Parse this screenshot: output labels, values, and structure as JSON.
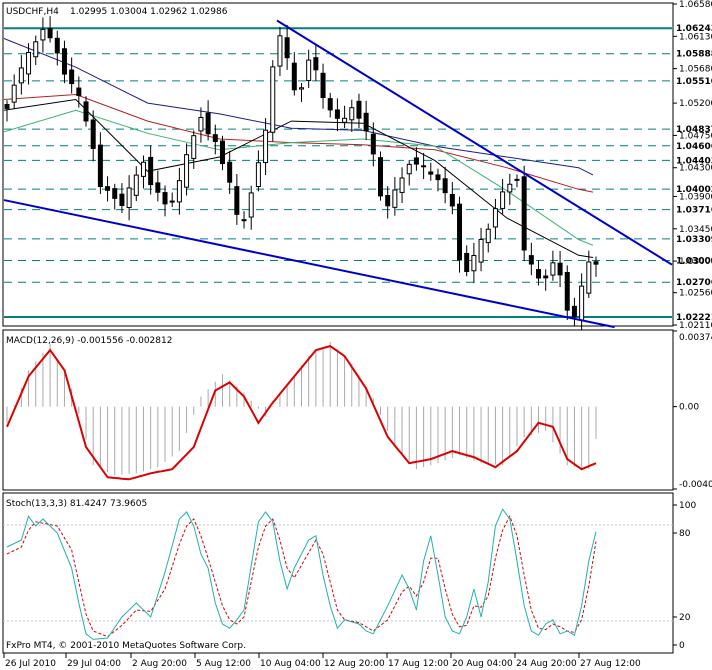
{
  "header": {
    "symbol": "USDCHF,H4",
    "ohlc": "1.02995 1.03004 1.02962 1.02986"
  },
  "footer": {
    "copyright": "FxPro MT4, © 2001-2010 MetaQuotes Software Corp."
  },
  "price_axis": {
    "ticks": [
      "1.06580",
      "1.06130",
      "1.05680",
      "1.05200",
      "1.04750",
      "1.04300",
      "1.03900",
      "1.03450",
      "1.03000",
      "1.02560",
      "1.02110"
    ],
    "levels": [
      "1.06243",
      "1.05888",
      "1.05510",
      "1.04837",
      "1.04606",
      "1.04403",
      "1.04002",
      "1.03716",
      "1.03309",
      "1.03009",
      "1.02706",
      "1.02221"
    ]
  },
  "macd": {
    "label": "MACD(12,26,9) -0.001556 -0.002812",
    "ticks": [
      "0.003746",
      "0.00",
      "-0.004079"
    ]
  },
  "stoch": {
    "label": "Stoch(13,3,3) 81.4247 73.9605",
    "ticks": [
      "100",
      "80",
      "20",
      "0"
    ]
  },
  "time_axis": [
    "26 Jul 2010",
    "29 Jul 04:00",
    "2 Aug 20:00",
    "5 Aug 12:00",
    "10 Aug 04:00",
    "12 Aug 20:00",
    "17 Aug 12:00",
    "20 Aug 04:00",
    "24 Aug 20:00",
    "27 Aug 12:00"
  ],
  "colors": {
    "level_line": "#008080",
    "trendline": "#0000cd",
    "macd_signal": "#dd0000",
    "macd_hist": "#a9a9a9",
    "stoch_main": "#20b2aa",
    "stoch_signal": "#dd0000",
    "ma_blue": "#1c1c8c",
    "ma_red": "#b22222",
    "ma_green": "#3cb371",
    "ma_black": "#000000"
  },
  "chart_data": [
    {
      "type": "candlestick",
      "title": "USDCHF,H4",
      "ylim": [
        1.0211,
        1.0658
      ],
      "price_trend": [
        [
          0,
          1.0515
        ],
        [
          1,
          1.055
        ],
        [
          3,
          1.0585
        ],
        [
          5,
          1.0625
        ],
        [
          6,
          1.061
        ],
        [
          7,
          1.059
        ],
        [
          8,
          1.0565
        ],
        [
          9,
          1.0548
        ],
        [
          10,
          1.0525
        ],
        [
          12,
          1.046
        ],
        [
          13,
          1.0405
        ],
        [
          15,
          1.039
        ],
        [
          16,
          1.038
        ],
        [
          18,
          1.0415
        ],
        [
          19,
          1.044
        ],
        [
          20,
          1.041
        ],
        [
          22,
          1.038
        ],
        [
          23,
          1.0385
        ],
        [
          24,
          1.041
        ],
        [
          26,
          1.0475
        ],
        [
          27,
          1.0505
        ],
        [
          28,
          1.0478
        ],
        [
          29,
          1.0465
        ],
        [
          31,
          1.041
        ],
        [
          32,
          1.036
        ],
        [
          33,
          1.0355
        ],
        [
          34,
          1.04
        ],
        [
          36,
          1.048
        ],
        [
          37,
          1.057
        ],
        [
          38,
          1.0615
        ],
        [
          39,
          1.058
        ],
        [
          40,
          1.0535
        ],
        [
          41,
          1.0545
        ],
        [
          42,
          1.0585
        ],
        [
          43,
          1.0565
        ],
        [
          44,
          1.0525
        ],
        [
          46,
          1.0498
        ],
        [
          47,
          1.0495
        ],
        [
          48,
          1.0515
        ],
        [
          49,
          1.0505
        ],
        [
          50,
          1.0482
        ],
        [
          51,
          1.0445
        ],
        [
          52,
          1.039
        ],
        [
          53,
          1.0378
        ],
        [
          55,
          1.0415
        ],
        [
          56,
          1.044
        ],
        [
          57,
          1.0438
        ],
        [
          58,
          1.0428
        ],
        [
          59,
          1.0418
        ],
        [
          60,
          1.0415
        ],
        [
          62,
          1.0375
        ],
        [
          63,
          1.0305
        ],
        [
          64,
          1.029
        ],
        [
          65,
          1.0305
        ],
        [
          67,
          1.0345
        ],
        [
          68,
          1.0375
        ],
        [
          69,
          1.0395
        ],
        [
          70,
          1.0408
        ],
        [
          71,
          1.0418
        ],
        [
          72,
          1.0315
        ],
        [
          73,
          1.029
        ],
        [
          74,
          1.0275
        ],
        [
          75,
          1.028
        ],
        [
          76,
          1.0298
        ],
        [
          77,
          1.028
        ],
        [
          78,
          1.0235
        ],
        [
          79,
          1.0224
        ],
        [
          80,
          1.026
        ],
        [
          81,
          1.0295
        ],
        [
          82,
          1.0299
        ]
      ],
      "moving_averages": {
        "blue": [
          [
            0,
            1.061
          ],
          [
            10,
            1.057
          ],
          [
            20,
            1.052
          ],
          [
            30,
            1.0505
          ],
          [
            40,
            1.0485
          ],
          [
            50,
            1.0482
          ],
          [
            60,
            1.046
          ],
          [
            70,
            1.0445
          ],
          [
            80,
            1.043
          ],
          [
            82,
            1.042
          ]
        ],
        "red": [
          [
            0,
            1.0525
          ],
          [
            10,
            1.0532
          ],
          [
            20,
            1.0495
          ],
          [
            30,
            1.047
          ],
          [
            40,
            1.0465
          ],
          [
            50,
            1.0462
          ],
          [
            60,
            1.0455
          ],
          [
            70,
            1.043
          ],
          [
            80,
            1.04
          ],
          [
            82,
            1.0396
          ]
        ],
        "green": [
          [
            0,
            1.048
          ],
          [
            10,
            1.051
          ],
          [
            20,
            1.0478
          ],
          [
            30,
            1.0455
          ],
          [
            40,
            1.0465
          ],
          [
            50,
            1.047
          ],
          [
            60,
            1.046
          ],
          [
            70,
            1.0398
          ],
          [
            80,
            1.033
          ],
          [
            82,
            1.0322
          ]
        ],
        "black": [
          [
            0,
            1.051
          ],
          [
            10,
            1.0525
          ],
          [
            20,
            1.0425
          ],
          [
            30,
            1.0445
          ],
          [
            40,
            1.0495
          ],
          [
            50,
            1.0492
          ],
          [
            60,
            1.044
          ],
          [
            70,
            1.036
          ],
          [
            80,
            1.0308
          ],
          [
            82,
            1.0305
          ]
        ]
      },
      "trendlines": [
        [
          [
            0,
            1.0385
          ],
          [
            85,
            1.0208
          ]
        ],
        [
          [
            38,
            1.0635
          ],
          [
            93,
            1.0295
          ]
        ]
      ]
    },
    {
      "type": "bar+line",
      "title": "MACD(12,26,9)",
      "ylim": [
        -0.004079,
        0.003746
      ],
      "signal": [
        [
          0,
          -0.001
        ],
        [
          3,
          0.0015
        ],
        [
          6,
          0.0028
        ],
        [
          8,
          0.0018
        ],
        [
          11,
          -0.002
        ],
        [
          14,
          -0.0035
        ],
        [
          17,
          -0.0036
        ],
        [
          20,
          -0.0033
        ],
        [
          23,
          -0.0031
        ],
        [
          26,
          -0.002
        ],
        [
          29,
          0.0008
        ],
        [
          31,
          0.0012
        ],
        [
          33,
          0.0005
        ],
        [
          35,
          -0.0008
        ],
        [
          37,
          0.0002
        ],
        [
          40,
          0.0015
        ],
        [
          43,
          0.0028
        ],
        [
          45,
          0.003
        ],
        [
          47,
          0.0025
        ],
        [
          50,
          0.0009
        ],
        [
          53,
          -0.0015
        ],
        [
          56,
          -0.0028
        ],
        [
          59,
          -0.0026
        ],
        [
          62,
          -0.0022
        ],
        [
          65,
          -0.0025
        ],
        [
          68,
          -0.003
        ],
        [
          71,
          -0.0022
        ],
        [
          74,
          -0.0008
        ],
        [
          76,
          -0.001
        ],
        [
          78,
          -0.0026
        ],
        [
          80,
          -0.0031
        ],
        [
          82,
          -0.0028
        ]
      ],
      "histogram": [
        [
          0,
          -0.0008
        ],
        [
          3,
          0.0018
        ],
        [
          6,
          0.0031
        ],
        [
          9,
          0.0009
        ],
        [
          12,
          -0.0029
        ],
        [
          15,
          -0.0034
        ],
        [
          18,
          -0.0033
        ],
        [
          21,
          -0.003
        ],
        [
          24,
          -0.0022
        ],
        [
          27,
          0.0005
        ],
        [
          30,
          0.0016
        ],
        [
          33,
          0.0007
        ],
        [
          36,
          -0.0005
        ],
        [
          39,
          0.0011
        ],
        [
          42,
          0.0025
        ],
        [
          45,
          0.0032
        ],
        [
          48,
          0.0021
        ],
        [
          51,
          0.0004
        ],
        [
          54,
          -0.002
        ],
        [
          57,
          -0.0031
        ],
        [
          60,
          -0.0028
        ],
        [
          63,
          -0.0024
        ],
        [
          66,
          -0.0028
        ],
        [
          69,
          -0.0029
        ],
        [
          72,
          -0.0015
        ],
        [
          75,
          -0.0012
        ],
        [
          78,
          -0.0029
        ],
        [
          81,
          -0.0031
        ],
        [
          82,
          -0.0016
        ]
      ]
    },
    {
      "type": "line",
      "title": "Stoch(13,3,3)",
      "ylim": [
        0,
        100
      ],
      "main": [
        [
          0,
          70
        ],
        [
          2,
          75
        ],
        [
          3,
          92
        ],
        [
          4,
          85
        ],
        [
          5,
          90
        ],
        [
          7,
          80
        ],
        [
          9,
          55
        ],
        [
          10,
          30
        ],
        [
          11,
          8
        ],
        [
          12,
          4
        ],
        [
          14,
          5
        ],
        [
          16,
          20
        ],
        [
          18,
          30
        ],
        [
          20,
          20
        ],
        [
          22,
          52
        ],
        [
          24,
          90
        ],
        [
          25,
          95
        ],
        [
          26,
          85
        ],
        [
          27,
          65
        ],
        [
          28,
          55
        ],
        [
          29,
          30
        ],
        [
          30,
          15
        ],
        [
          31,
          12
        ],
        [
          32,
          18
        ],
        [
          33,
          25
        ],
        [
          35,
          88
        ],
        [
          36,
          95
        ],
        [
          37,
          88
        ],
        [
          38,
          60
        ],
        [
          39,
          40
        ],
        [
          40,
          55
        ],
        [
          42,
          75
        ],
        [
          43,
          78
        ],
        [
          44,
          50
        ],
        [
          45,
          28
        ],
        [
          46,
          12
        ],
        [
          47,
          18
        ],
        [
          49,
          15
        ],
        [
          50,
          10
        ],
        [
          51,
          8
        ],
        [
          53,
          28
        ],
        [
          55,
          50
        ],
        [
          56,
          40
        ],
        [
          57,
          25
        ],
        [
          58,
          60
        ],
        [
          59,
          78
        ],
        [
          60,
          50
        ],
        [
          61,
          20
        ],
        [
          62,
          10
        ],
        [
          63,
          8
        ],
        [
          64,
          20
        ],
        [
          65,
          40
        ],
        [
          66,
          20
        ],
        [
          67,
          45
        ],
        [
          68,
          85
        ],
        [
          69,
          97
        ],
        [
          70,
          90
        ],
        [
          71,
          60
        ],
        [
          72,
          28
        ],
        [
          73,
          10
        ],
        [
          74,
          7
        ],
        [
          75,
          15
        ],
        [
          76,
          18
        ],
        [
          77,
          8
        ],
        [
          78,
          10
        ],
        [
          79,
          7
        ],
        [
          80,
          28
        ],
        [
          81,
          60
        ],
        [
          82,
          81
        ]
      ],
      "signal": [
        [
          0,
          65
        ],
        [
          2,
          70
        ],
        [
          3,
          82
        ],
        [
          4,
          88
        ],
        [
          5,
          87
        ],
        [
          7,
          85
        ],
        [
          9,
          68
        ],
        [
          10,
          45
        ],
        [
          11,
          22
        ],
        [
          12,
          10
        ],
        [
          14,
          6
        ],
        [
          16,
          14
        ],
        [
          18,
          25
        ],
        [
          20,
          24
        ],
        [
          22,
          40
        ],
        [
          24,
          72
        ],
        [
          25,
          85
        ],
        [
          26,
          90
        ],
        [
          27,
          78
        ],
        [
          28,
          62
        ],
        [
          29,
          45
        ],
        [
          30,
          28
        ],
        [
          31,
          18
        ],
        [
          32,
          15
        ],
        [
          33,
          20
        ],
        [
          35,
          70
        ],
        [
          36,
          85
        ],
        [
          37,
          90
        ],
        [
          38,
          75
        ],
        [
          39,
          55
        ],
        [
          40,
          48
        ],
        [
          42,
          66
        ],
        [
          43,
          75
        ],
        [
          44,
          65
        ],
        [
          45,
          45
        ],
        [
          46,
          25
        ],
        [
          47,
          18
        ],
        [
          49,
          16
        ],
        [
          50,
          13
        ],
        [
          51,
          10
        ],
        [
          53,
          18
        ],
        [
          55,
          38
        ],
        [
          56,
          42
        ],
        [
          57,
          35
        ],
        [
          58,
          45
        ],
        [
          59,
          62
        ],
        [
          60,
          62
        ],
        [
          61,
          40
        ],
        [
          62,
          22
        ],
        [
          63,
          13
        ],
        [
          64,
          14
        ],
        [
          65,
          28
        ],
        [
          66,
          27
        ],
        [
          67,
          35
        ],
        [
          68,
          62
        ],
        [
          69,
          82
        ],
        [
          70,
          92
        ],
        [
          71,
          78
        ],
        [
          72,
          50
        ],
        [
          73,
          25
        ],
        [
          74,
          12
        ],
        [
          75,
          11
        ],
        [
          76,
          15
        ],
        [
          77,
          13
        ],
        [
          78,
          10
        ],
        [
          79,
          9
        ],
        [
          80,
          18
        ],
        [
          81,
          42
        ],
        [
          82,
          74
        ]
      ]
    }
  ]
}
